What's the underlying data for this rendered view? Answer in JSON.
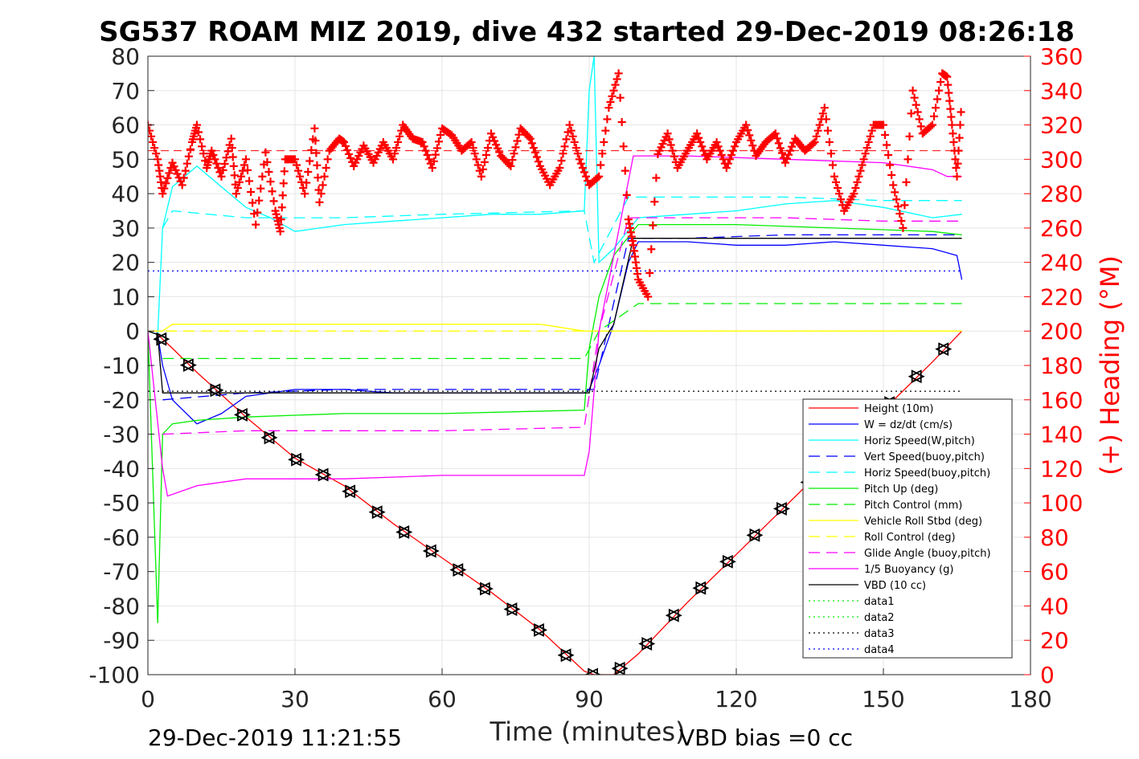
{
  "chart_data": {
    "type": "line",
    "title": "SG537 ROAM MIZ 2019, dive 432 started 29-Dec-2019 08:26:18",
    "xlabel": "Time (minutes)",
    "ylabel_right": "(+) Heading (°M)",
    "xlim": [
      0,
      180
    ],
    "ylim_left": [
      -100,
      80
    ],
    "ylim_right": [
      0,
      360
    ],
    "x_ticks": [
      "0",
      "30",
      "60",
      "90",
      "120",
      "150",
      "180"
    ],
    "y_ticks_left": [
      "80",
      "70",
      "60",
      "50",
      "40",
      "30",
      "20",
      "10",
      "0",
      "-10",
      "-20",
      "-30",
      "-40",
      "-50",
      "-60",
      "-70",
      "-80",
      "-90",
      "-100"
    ],
    "y_ticks_right": [
      "360",
      "340",
      "320",
      "300",
      "280",
      "260",
      "240",
      "220",
      "200",
      "180",
      "160",
      "140",
      "120",
      "100",
      "80",
      "60",
      "40",
      "20",
      "0"
    ],
    "grid": true,
    "legend_position": "bottom-right",
    "footer_left": "29-Dec-2019 11:21:55",
    "footer_right": "VBD bias =0 cc",
    "series": [
      {
        "name": "Height (10m)",
        "color": "#ff0000",
        "style": "solid",
        "x": [
          0,
          2,
          5,
          10,
          20,
          30,
          40,
          50,
          60,
          70,
          80,
          89,
          91,
          95,
          100,
          110,
          120,
          130,
          140,
          150,
          160,
          166
        ],
        "y": [
          0,
          -1,
          -5,
          -12,
          -25,
          -37,
          -45,
          -56,
          -66,
          -76,
          -87,
          -99,
          -100,
          -100,
          -94,
          -79,
          -65,
          -51,
          -37,
          -23,
          -9,
          0
        ]
      },
      {
        "name": "W = dz/dt (cm/s)",
        "color": "#0000ff",
        "style": "solid",
        "x": [
          0,
          2,
          3,
          5,
          10,
          15,
          20,
          30,
          40,
          50,
          60,
          70,
          80,
          89,
          90,
          92,
          95,
          98,
          100,
          110,
          120,
          130,
          140,
          150,
          160,
          165,
          166
        ],
        "y": [
          0,
          -1,
          -10,
          -20,
          -27,
          -24,
          -19,
          -17,
          -17,
          -18,
          -18,
          -18,
          -18,
          -18,
          -17,
          -10,
          2,
          20,
          26,
          26,
          25,
          25,
          26,
          25,
          24,
          22,
          15
        ]
      },
      {
        "name": "Horiz Speed(W,pitch)",
        "color": "#00ffff",
        "style": "solid",
        "x": [
          0,
          2,
          3,
          5,
          10,
          15,
          20,
          25,
          30,
          40,
          50,
          60,
          70,
          80,
          89,
          90,
          91,
          92,
          95,
          100,
          110,
          120,
          130,
          140,
          150,
          160,
          166
        ],
        "y": [
          0,
          -1,
          30,
          42,
          48,
          42,
          36,
          33,
          29,
          31,
          32,
          33,
          34,
          34,
          35,
          70,
          80,
          20,
          24,
          33,
          34,
          35,
          37,
          38,
          36,
          33,
          34
        ]
      },
      {
        "name": "Vert Speed(buoy,pitch)",
        "color": "#0000ff",
        "style": "dashed",
        "x": [
          3,
          20,
          40,
          60,
          89,
          91,
          98,
          110,
          130,
          150,
          166
        ],
        "y": [
          -20,
          -18,
          -17,
          -17,
          -17,
          -17,
          27,
          27,
          28,
          28,
          28
        ]
      },
      {
        "name": "Horiz Speed(buoy,pitch)",
        "color": "#00ffff",
        "style": "dashed",
        "x": [
          3,
          5,
          20,
          40,
          60,
          89,
          91,
          98,
          110,
          130,
          150,
          166
        ],
        "y": [
          30,
          35,
          33,
          33,
          34,
          35,
          20,
          39,
          39,
          39,
          38,
          38
        ]
      },
      {
        "name": "Pitch Up (deg)",
        "color": "#00ee00",
        "style": "solid",
        "x": [
          0,
          2,
          3,
          5,
          10,
          20,
          40,
          60,
          89,
          90,
          92,
          95,
          100,
          120,
          140,
          160,
          166
        ],
        "y": [
          0,
          -85,
          -30,
          -27,
          -26,
          -25,
          -24,
          -24,
          -23,
          -5,
          10,
          22,
          31,
          31,
          30,
          29,
          28
        ]
      },
      {
        "name": "Pitch Control (mm)",
        "color": "#00ee00",
        "style": "dashed",
        "x": [
          3,
          30,
          60,
          89,
          92,
          100,
          130,
          160,
          166
        ],
        "y": [
          -8,
          -8,
          -8,
          -8,
          0,
          8,
          8,
          8,
          8
        ]
      },
      {
        "name": "Vehicle Roll Stbd (deg)",
        "color": "#ffff00",
        "style": "solid",
        "x": [
          0,
          3,
          5,
          10,
          20,
          30,
          40,
          50,
          60,
          70,
          80,
          89,
          90,
          95,
          100,
          110,
          120,
          130,
          140,
          150,
          160,
          166
        ],
        "y": [
          0,
          0,
          2,
          2,
          2,
          2,
          2,
          2,
          2,
          2,
          2,
          0,
          0,
          0,
          0,
          0,
          0,
          0,
          0,
          0,
          0,
          0
        ]
      },
      {
        "name": "Roll Control (deg)",
        "color": "#ffff00",
        "style": "dashed",
        "x": [
          0,
          89,
          90,
          166
        ],
        "y": [
          0,
          0,
          0,
          0
        ]
      },
      {
        "name": "Glide Angle (buoy,pitch)",
        "color": "#ff00ff",
        "style": "dashed",
        "x": [
          3,
          20,
          40,
          60,
          89,
          92,
          98,
          110,
          130,
          150,
          166
        ],
        "y": [
          -30,
          -29,
          -29,
          -29,
          -28,
          0,
          33,
          33,
          33,
          32,
          32
        ]
      },
      {
        "name": "1/5 Buoyancy (g)",
        "color": "#ff00ff",
        "style": "solid",
        "x": [
          0,
          3,
          4,
          10,
          20,
          40,
          60,
          89,
          90,
          92,
          99,
          110,
          130,
          150,
          160,
          163,
          166
        ],
        "y": [
          0,
          -40,
          -48,
          -45,
          -43,
          -43,
          -42,
          -42,
          -35,
          0,
          51,
          51,
          50,
          49,
          47,
          45,
          45
        ]
      },
      {
        "name": "VBD (10 cc)",
        "color": "#000000",
        "style": "solid",
        "x": [
          0,
          2,
          3,
          89,
          90,
          92,
          95,
          99,
          110,
          130,
          150,
          166
        ],
        "y": [
          0,
          -1,
          -18,
          -18,
          -18,
          -5,
          2,
          27,
          27,
          27,
          27,
          27
        ]
      },
      {
        "name": "data1",
        "color": "#00ee00",
        "style": "dotted",
        "x": [],
        "y": []
      },
      {
        "name": "data2",
        "color": "#00ee00",
        "style": "dotted",
        "x": [],
        "y": []
      },
      {
        "name": "data3",
        "color": "#000000",
        "style": "dotted",
        "x": [
          0,
          166
        ],
        "y": [
          -17.5,
          -17.5
        ]
      },
      {
        "name": "data4",
        "color": "#0000ff",
        "style": "dotted",
        "x": [
          0,
          166
        ],
        "y": [
          17.5,
          17.5
        ]
      }
    ],
    "heading": {
      "axis": "right",
      "color": "#ff0000",
      "marker": "+",
      "mean_line": 305,
      "x": [
        0,
        2,
        3,
        5,
        7,
        9,
        10,
        12,
        13,
        15,
        17,
        18,
        20,
        22,
        24,
        26,
        27,
        28,
        30,
        32,
        34,
        35,
        37,
        39,
        40,
        42,
        44,
        46,
        48,
        50,
        52,
        54,
        56,
        58,
        60,
        62,
        64,
        66,
        68,
        70,
        72,
        74,
        76,
        78,
        80,
        82,
        84,
        86,
        88,
        90,
        92,
        94,
        96,
        98,
        99,
        100,
        102,
        104,
        106,
        108,
        110,
        112,
        114,
        116,
        118,
        120,
        122,
        124,
        126,
        128,
        130,
        132,
        134,
        136,
        138,
        140,
        142,
        144,
        146,
        148,
        150,
        152,
        154,
        156,
        158,
        160,
        162,
        163,
        164,
        165,
        166
      ],
      "y": [
        320,
        300,
        280,
        298,
        285,
        310,
        320,
        295,
        305,
        290,
        312,
        280,
        300,
        262,
        304,
        270,
        258,
        300,
        300,
        280,
        318,
        275,
        305,
        312,
        310,
        296,
        308,
        298,
        310,
        300,
        320,
        312,
        310,
        295,
        318,
        314,
        305,
        310,
        290,
        315,
        302,
        296,
        318,
        312,
        296,
        285,
        295,
        320,
        300,
        285,
        290,
        330,
        350,
        265,
        250,
        230,
        220,
        303,
        315,
        295,
        305,
        315,
        300,
        310,
        295,
        310,
        320,
        302,
        310,
        315,
        298,
        312,
        305,
        310,
        330,
        290,
        270,
        280,
        300,
        320,
        320,
        285,
        260,
        340,
        315,
        320,
        350,
        348,
        320,
        290,
        335
      ]
    }
  }
}
